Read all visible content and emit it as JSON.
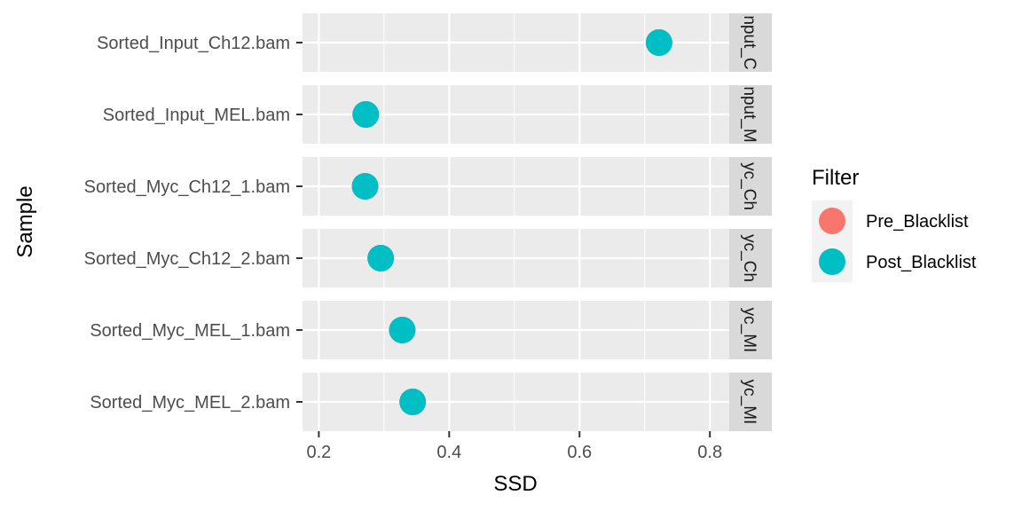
{
  "chart_data": {
    "type": "scatter",
    "title": "",
    "xlabel": "SSD",
    "ylabel": "Sample",
    "xlim": [
      0.175,
      0.895
    ],
    "xticks": [
      0.2,
      0.4,
      0.6,
      0.8
    ],
    "xtick_labels": [
      "0.2",
      "0.4",
      "0.6",
      "0.8"
    ],
    "grid": true,
    "facets": [
      {
        "sample": "Sorted_Input_Ch12.bam",
        "strip": "nput_C"
      },
      {
        "sample": "Sorted_Input_MEL.bam",
        "strip": "nput_M"
      },
      {
        "sample": "Sorted_Myc_Ch12_1.bam",
        "strip": "yc_Ch"
      },
      {
        "sample": "Sorted_Myc_Ch12_2.bam",
        "strip": "yc_Ch"
      },
      {
        "sample": "Sorted_Myc_MEL_1.bam",
        "strip": "yc_MI"
      },
      {
        "sample": "Sorted_Myc_MEL_2.bam",
        "strip": "yc_MI"
      }
    ],
    "series": [
      {
        "name": "Pre_Blacklist",
        "color": "#F8766D",
        "values": [
          0.722,
          0.272,
          0.271,
          0.295,
          0.328,
          0.344
        ]
      },
      {
        "name": "Post_Blacklist",
        "color": "#00BFC4",
        "values": [
          0.722,
          0.272,
          0.271,
          0.295,
          0.328,
          0.344
        ]
      }
    ],
    "legend": {
      "title": "Filter",
      "placement": "right"
    }
  }
}
